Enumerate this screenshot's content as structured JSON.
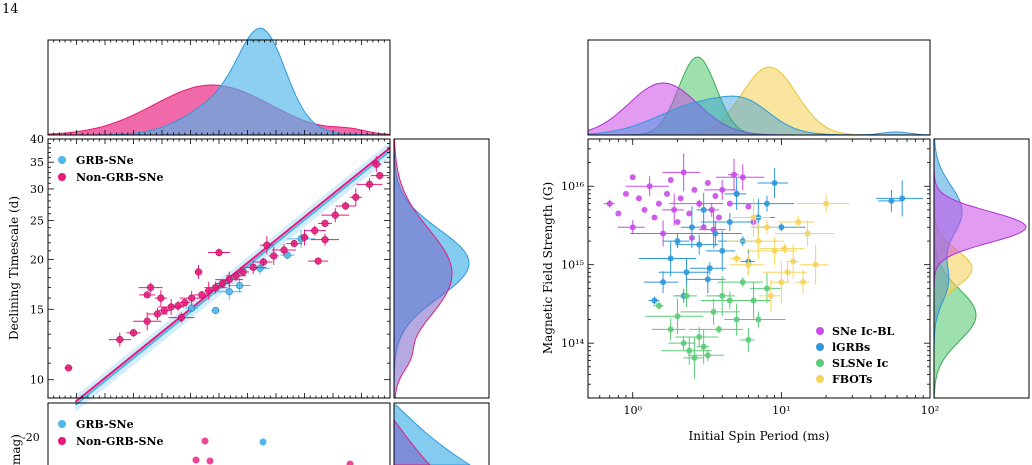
{
  "page_number": "14",
  "colors": {
    "grb": "#4fb6ea",
    "nongrb": "#e8197a",
    "icbl": "#c94be8",
    "lgrb": "#2f98dc",
    "slsn": "#5ccb78",
    "fbot": "#f5d460"
  },
  "chart_data": [
    {
      "type": "scatter",
      "name": "left-scatter",
      "ylabel": "Declining Timescale (d)",
      "yscale": "log",
      "ylim": [
        9,
        40
      ],
      "xlim": [
        0,
        10
      ],
      "yticks": [
        "10",
        "15",
        "20",
        "25",
        "30",
        "35",
        "40"
      ],
      "legend": [
        "GRB-SNe",
        "Non-GRB-SNe"
      ],
      "legend_position": "top-left",
      "series": [
        {
          "name": "GRB-SNe",
          "points": [
            [
              4.9,
              14.9
            ],
            [
              5.6,
              17.2
            ],
            [
              7.0,
              20.5
            ],
            [
              7.4,
              22.5
            ],
            [
              6.2,
              19.0
            ],
            [
              4.2,
              15.1
            ],
            [
              5.3,
              16.6
            ]
          ]
        },
        {
          "name": "Non-GRB-SNe",
          "points": [
            [
              0.6,
              10.7
            ],
            [
              2.1,
              12.6
            ],
            [
              2.5,
              13.1
            ],
            [
              2.9,
              14.0
            ],
            [
              3.2,
              14.6
            ],
            [
              3.4,
              14.9
            ],
            [
              3.6,
              15.2
            ],
            [
              3.8,
              15.3
            ],
            [
              4.0,
              15.6
            ],
            [
              4.2,
              16.0
            ],
            [
              4.5,
              16.3
            ],
            [
              4.7,
              16.7
            ],
            [
              4.9,
              17.0
            ],
            [
              5.1,
              17.4
            ],
            [
              5.3,
              17.8
            ],
            [
              5.5,
              18.2
            ],
            [
              5.7,
              18.6
            ],
            [
              6.0,
              19.1
            ],
            [
              6.3,
              19.7
            ],
            [
              6.6,
              20.4
            ],
            [
              6.9,
              21.1
            ],
            [
              7.2,
              21.9
            ],
            [
              7.5,
              22.7
            ],
            [
              7.8,
              23.6
            ],
            [
              8.1,
              24.6
            ],
            [
              8.4,
              25.8
            ],
            [
              8.7,
              27.2
            ],
            [
              9.0,
              28.6
            ],
            [
              9.4,
              30.8
            ],
            [
              9.7,
              32.4
            ],
            [
              9.6,
              34.6
            ],
            [
              3.0,
              17.0
            ],
            [
              2.9,
              16.3
            ],
            [
              4.4,
              18.6
            ],
            [
              5.0,
              20.8
            ],
            [
              6.4,
              21.7
            ],
            [
              8.1,
              22.4
            ],
            [
              7.9,
              19.8
            ],
            [
              3.3,
              16.0
            ],
            [
              3.9,
              14.3
            ]
          ]
        }
      ],
      "fit_line": [
        [
          0.8,
          8.8
        ],
        [
          10,
          38.0
        ]
      ]
    },
    {
      "type": "scatter",
      "name": "right-scatter",
      "xlabel": "Initial Spin Period (ms)",
      "ylabel": "Magnetic Field Strength (G)",
      "xscale": "log",
      "yscale": "log",
      "xlim": [
        0.5,
        100
      ],
      "ylim": [
        20000000000000.0,
        4e+16
      ],
      "xticks": [
        "10⁰",
        "10¹",
        "10²"
      ],
      "yticks": [
        "10¹⁴",
        "10¹⁵",
        "10¹⁶"
      ],
      "legend": [
        "SNe Ic-BL",
        "lGRBs",
        "SLSNe Ic",
        "FBOTs"
      ],
      "legend_position": "bottom-right",
      "series": [
        {
          "name": "SNe Ic-BL",
          "points": [
            [
              0.7,
              6000000000000000.0
            ],
            [
              0.8,
              4500000000000000.0
            ],
            [
              0.9,
              8000000000000000.0
            ],
            [
              1.0,
              3000000000000000.0
            ],
            [
              1.1,
              7000000000000000.0
            ],
            [
              1.2,
              5000000000000000.0
            ],
            [
              1.3,
              1e+16
            ],
            [
              1.4,
              4000000000000000.0
            ],
            [
              1.5,
              6000000000000000.0
            ],
            [
              1.6,
              2500000000000000.0
            ],
            [
              1.7,
              8000000000000000.0
            ],
            [
              1.8,
              1.2e+16
            ],
            [
              1.9,
              5000000000000000.0
            ],
            [
              2.0,
              3500000000000000.0
            ],
            [
              2.1,
              7000000000000000.0
            ],
            [
              2.2,
              1.5e+16
            ],
            [
              2.4,
              4500000000000000.0
            ],
            [
              2.6,
              9000000000000000.0
            ],
            [
              2.8,
              6000000000000000.0
            ],
            [
              3.0,
              3000000000000000.0
            ],
            [
              3.2,
              1.1e+16
            ],
            [
              3.4,
              5000000000000000.0
            ],
            [
              3.6,
              7500000000000000.0
            ],
            [
              3.8,
              4000000000000000.0
            ],
            [
              4.0,
              9000000000000000.0
            ],
            [
              4.5,
              6000000000000000.0
            ],
            [
              5.0,
              8000000000000000.0
            ],
            [
              5.5,
              1.3e+16
            ],
            [
              6.0,
              5500000000000000.0
            ],
            [
              6.5,
              3500000000000000.0
            ],
            [
              4.8,
              1.4e+16
            ],
            [
              1.0,
              1.3e+16
            ],
            [
              2.5,
              2200000000000000.0
            ],
            [
              3.5,
              2800000000000000.0
            ]
          ]
        },
        {
          "name": "lGRBs",
          "points": [
            [
              1.4,
              350000000000000.0
            ],
            [
              1.6,
              600000000000000.0
            ],
            [
              1.8,
              1200000000000000.0
            ],
            [
              2.0,
              2000000000000000.0
            ],
            [
              2.3,
              800000000000000.0
            ],
            [
              2.5,
              3000000000000000.0
            ],
            [
              2.8,
              1800000000000000.0
            ],
            [
              3.0,
              5000000000000000.0
            ],
            [
              3.3,
              900000000000000.0
            ],
            [
              3.6,
              2500000000000000.0
            ],
            [
              4.0,
              1500000000000000.0
            ],
            [
              4.5,
              3500000000000000.0
            ],
            [
              5.0,
              8000000000000000.0
            ],
            [
              5.5,
              2000000000000000.0
            ],
            [
              6.0,
              1100000000000000.0
            ],
            [
              7.0,
              4000000000000000.0
            ],
            [
              8.0,
              6000000000000000.0
            ],
            [
              9.0,
              1.1e+16
            ],
            [
              10.0,
              3000000000000000.0
            ],
            [
              55.0,
              6500000000000000.0
            ],
            [
              65.0,
              7000000000000000.0
            ],
            [
              2.2,
              400000000000000.0
            ],
            [
              3.2,
              650000000000000.0
            ]
          ]
        },
        {
          "name": "SLSNe Ic",
          "points": [
            [
              1.5,
              300000000000000.0
            ],
            [
              1.8,
              150000000000000.0
            ],
            [
              2.0,
              220000000000000.0
            ],
            [
              2.2,
              100000000000000.0
            ],
            [
              2.4,
              80000000000000.0
            ],
            [
              2.6,
              65000000000000.0
            ],
            [
              2.8,
              120000000000000.0
            ],
            [
              3.0,
              90000000000000.0
            ],
            [
              3.2,
              70000000000000.0
            ],
            [
              3.5,
              250000000000000.0
            ],
            [
              4.0,
              400000000000000.0
            ],
            [
              4.5,
              350000000000000.0
            ],
            [
              5.0,
              200000000000000.0
            ],
            [
              5.5,
              600000000000000.0
            ],
            [
              6.0,
              110000000000000.0
            ],
            [
              6.5,
              350000000000000.0
            ],
            [
              7.0,
              200000000000000.0
            ],
            [
              8.0,
              500000000000000.0
            ],
            [
              3.8,
              150000000000000.0
            ],
            [
              2.3,
              400000000000000.0
            ]
          ]
        },
        {
          "name": "FBOTs",
          "points": [
            [
              5.0,
              1200000000000000.0
            ],
            [
              6.0,
              1000000000000000.0
            ],
            [
              7.0,
              2000000000000000.0
            ],
            [
              8.0,
              3000000000000000.0
            ],
            [
              9.0,
              1500000000000000.0
            ],
            [
              10.0,
              600000000000000.0
            ],
            [
              11.0,
              800000000000000.0
            ],
            [
              12.0,
              1100000000000000.0
            ],
            [
              13.0,
              3500000000000000.0
            ],
            [
              15.0,
              2500000000000000.0
            ],
            [
              17.0,
              1000000000000000.0
            ],
            [
              20.0,
              6000000000000000.0
            ],
            [
              8.5,
              400000000000000.0
            ],
            [
              10.5,
              1600000000000000.0
            ],
            [
              14.0,
              600000000000000.0
            ],
            [
              6.5,
              4000000000000000.0
            ]
          ]
        }
      ]
    }
  ]
}
